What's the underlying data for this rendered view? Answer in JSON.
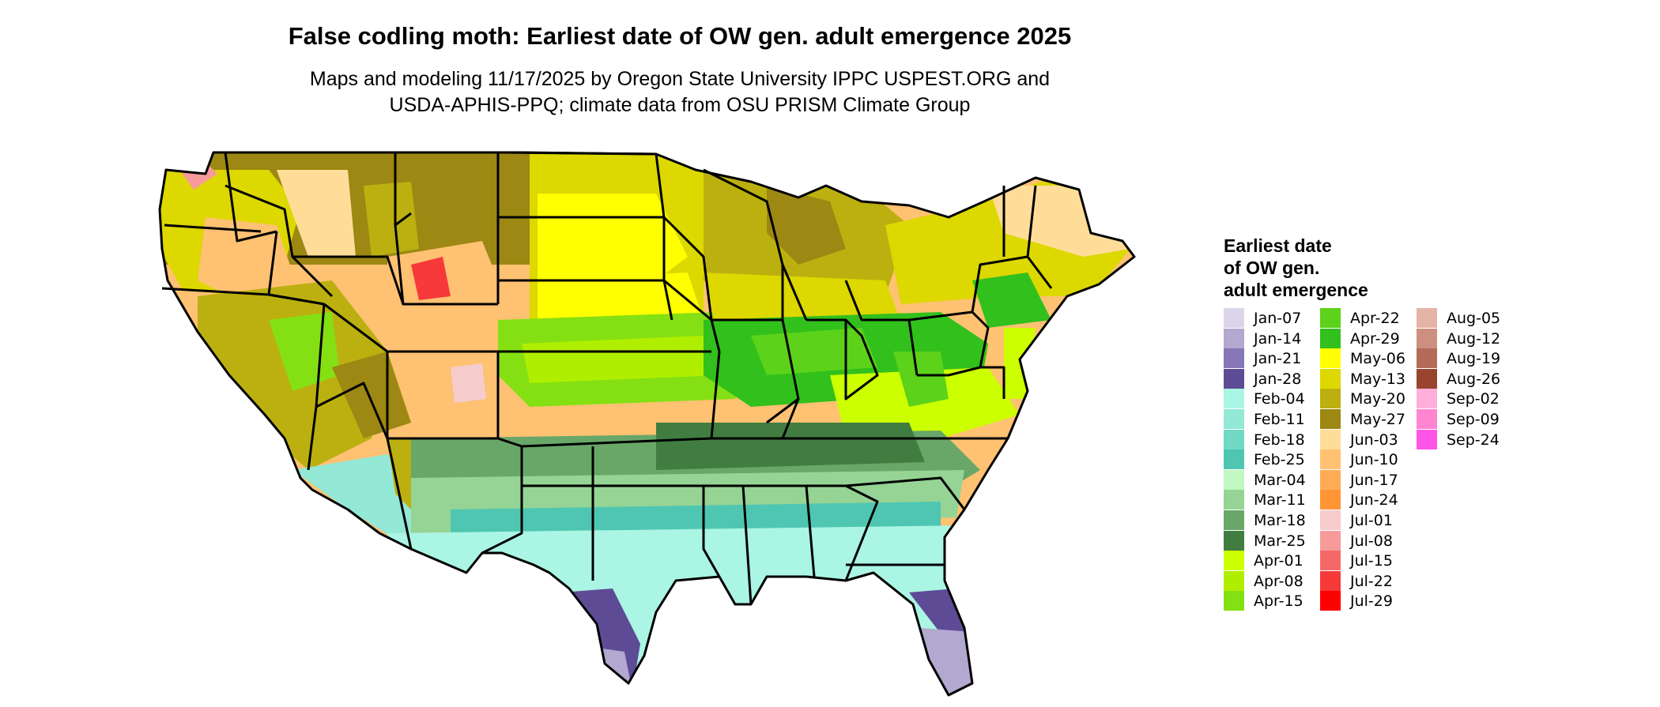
{
  "title": "False codling moth: Earliest date of OW gen. adult emergence 2025",
  "subtitle_line1": "Maps and modeling 11/17/2025 by Oregon State University IPPC USPEST.ORG and",
  "subtitle_line2": "USDA-APHIS-PPQ; climate data from OSU PRISM Climate Group",
  "legend": {
    "title_lines": [
      "Earliest date",
      "of OW gen.",
      "adult emergence"
    ],
    "items": [
      {
        "label": "Jan-07",
        "color": "#dcd4ea"
      },
      {
        "label": "Jan-14",
        "color": "#b2a8d0"
      },
      {
        "label": "Jan-21",
        "color": "#8777b6"
      },
      {
        "label": "Jan-28",
        "color": "#5e4b96"
      },
      {
        "label": "Feb-04",
        "color": "#aaf5e3"
      },
      {
        "label": "Feb-11",
        "color": "#93e8d6"
      },
      {
        "label": "Feb-18",
        "color": "#70d9c4"
      },
      {
        "label": "Feb-25",
        "color": "#4fc6b2"
      },
      {
        "label": "Mar-04",
        "color": "#c2f7c2"
      },
      {
        "label": "Mar-11",
        "color": "#95d495"
      },
      {
        "label": "Mar-18",
        "color": "#68a768"
      },
      {
        "label": "Mar-25",
        "color": "#417d41"
      },
      {
        "label": "Apr-01",
        "color": "#ccff00"
      },
      {
        "label": "Apr-08",
        "color": "#b0ee00"
      },
      {
        "label": "Apr-15",
        "color": "#84e012"
      },
      {
        "label": "Apr-22",
        "color": "#5cd21a"
      },
      {
        "label": "Apr-29",
        "color": "#32c01c"
      },
      {
        "label": "May-06",
        "color": "#ffff00"
      },
      {
        "label": "May-13",
        "color": "#dcd800"
      },
      {
        "label": "May-20",
        "color": "#bcb010"
      },
      {
        "label": "May-27",
        "color": "#9c8812"
      },
      {
        "label": "Jun-03",
        "color": "#ffdd99"
      },
      {
        "label": "Jun-10",
        "color": "#ffc172"
      },
      {
        "label": "Jun-17",
        "color": "#ffab55"
      },
      {
        "label": "Jun-24",
        "color": "#ff9535"
      },
      {
        "label": "Jul-01",
        "color": "#f6cccc"
      },
      {
        "label": "Jul-08",
        "color": "#f79a9a"
      },
      {
        "label": "Jul-15",
        "color": "#f66868"
      },
      {
        "label": "Jul-22",
        "color": "#f63a3a"
      },
      {
        "label": "Jul-29",
        "color": "#ff0000"
      },
      {
        "label": "Aug-05",
        "color": "#e6b3a7"
      },
      {
        "label": "Aug-12",
        "color": "#cd8f7f"
      },
      {
        "label": "Aug-19",
        "color": "#b56a59"
      },
      {
        "label": "Aug-26",
        "color": "#99442f"
      },
      {
        "label": "Sep-02",
        "color": "#ffb0da"
      },
      {
        "label": "Sep-09",
        "color": "#ff84d2"
      },
      {
        "label": "Sep-24",
        "color": "#ff55e6"
      }
    ]
  }
}
